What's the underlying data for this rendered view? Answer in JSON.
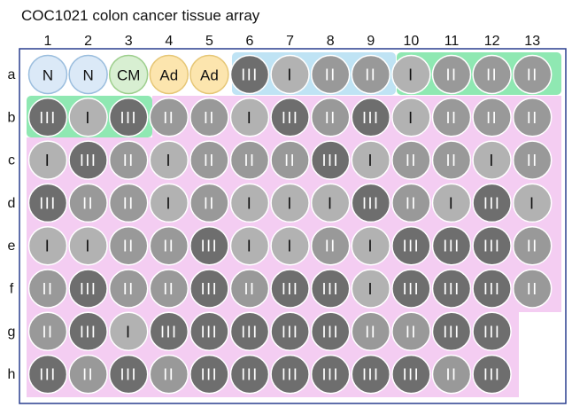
{
  "title": "COC1021 colon cancer tissue array",
  "columns": [
    "1",
    "2",
    "3",
    "4",
    "5",
    "6",
    "7",
    "8",
    "9",
    "10",
    "11",
    "12",
    "13"
  ],
  "rows": [
    "a",
    "b",
    "c",
    "d",
    "e",
    "f",
    "g",
    "h"
  ],
  "grid": [
    [
      "N",
      "N",
      "CM",
      "Ad",
      "Ad",
      "III",
      "I",
      "II",
      "II",
      "I",
      "II",
      "II",
      "II"
    ],
    [
      "III",
      "I",
      "III",
      "II",
      "II",
      "I",
      "III",
      "II",
      "III",
      "I",
      "II",
      "II",
      "II"
    ],
    [
      "I",
      "III",
      "II",
      "I",
      "II",
      "II",
      "II",
      "III",
      "I",
      "II",
      "II",
      "I",
      "II"
    ],
    [
      "III",
      "II",
      "II",
      "I",
      "II",
      "I",
      "I",
      "I",
      "III",
      "II",
      "I",
      "III",
      "I"
    ],
    [
      "I",
      "I",
      "II",
      "II",
      "III",
      "I",
      "I",
      "II",
      "I",
      "III",
      "III",
      "III",
      "II"
    ],
    [
      "II",
      "III",
      "II",
      "II",
      "III",
      "II",
      "III",
      "III",
      "I",
      "III",
      "III",
      "III",
      "II"
    ],
    [
      "II",
      "III",
      "I",
      "III",
      "III",
      "III",
      "III",
      "III",
      "II",
      "II",
      "III",
      "III",
      ""
    ],
    [
      "III",
      "II",
      "III",
      "II",
      "III",
      "III",
      "III",
      "III",
      "III",
      "III",
      "II",
      "III",
      ""
    ]
  ],
  "colors": {
    "border": "#2a3f8f",
    "region_pink": "#f4cdf2",
    "region_blue": "#bfe3f4",
    "region_green": "#8fe8b2",
    "stage_I": "#b2b2b2",
    "stage_II": "#999999",
    "stage_III": "#6e6e6e",
    "normal_fill": "#dbe9f7",
    "normal_stroke": "#9bbede",
    "cm_fill": "#d8efd2",
    "cm_stroke": "#9ecf8e",
    "ad_fill": "#fce5ae",
    "ad_stroke": "#e6c777"
  }
}
